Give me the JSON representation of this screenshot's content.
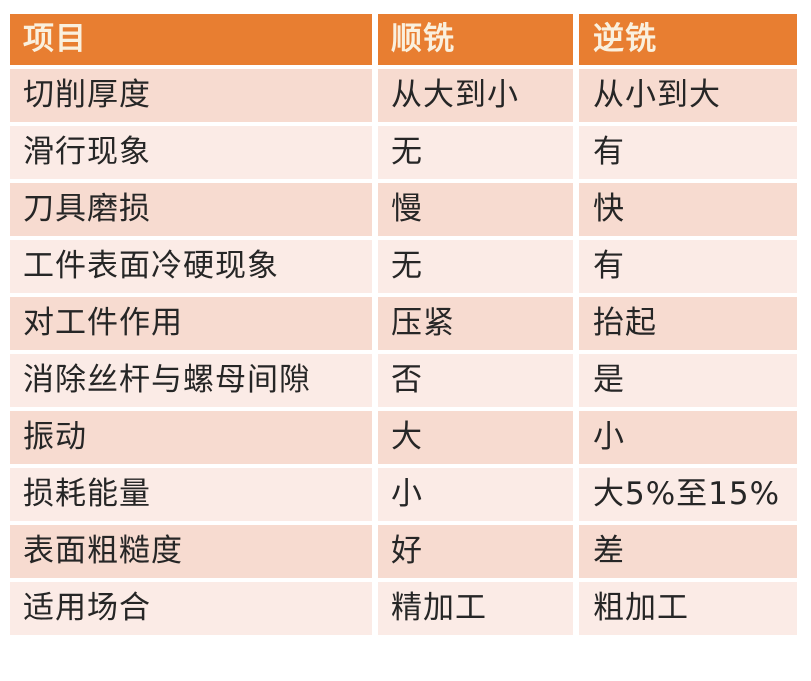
{
  "style": {
    "header_bg": "#E87E31",
    "header_text_color": "#FAF0DE",
    "row_odd_bg": "#F7DBD0",
    "row_even_bg": "#FBEBE6",
    "body_text_color": "#262626",
    "page_bg": "#FFFFFF"
  },
  "chart_data": {
    "type": "table",
    "columns": [
      "项目",
      "顺铣",
      "逆铣"
    ],
    "rows": [
      [
        "切削厚度",
        "从大到小",
        "从小到大"
      ],
      [
        "滑行现象",
        "无",
        "有"
      ],
      [
        "刀具磨损",
        "慢",
        "快"
      ],
      [
        "工件表面冷硬现象",
        "无",
        "有"
      ],
      [
        "对工件作用",
        "压紧",
        "抬起"
      ],
      [
        "消除丝杆与螺母间隙",
        "否",
        "是"
      ],
      [
        "振动",
        "大",
        "小"
      ],
      [
        "损耗能量",
        "小",
        "大5%至15%"
      ],
      [
        "表面粗糙度",
        "好",
        "差"
      ],
      [
        "适用场合",
        "精加工",
        "粗加工"
      ]
    ]
  }
}
